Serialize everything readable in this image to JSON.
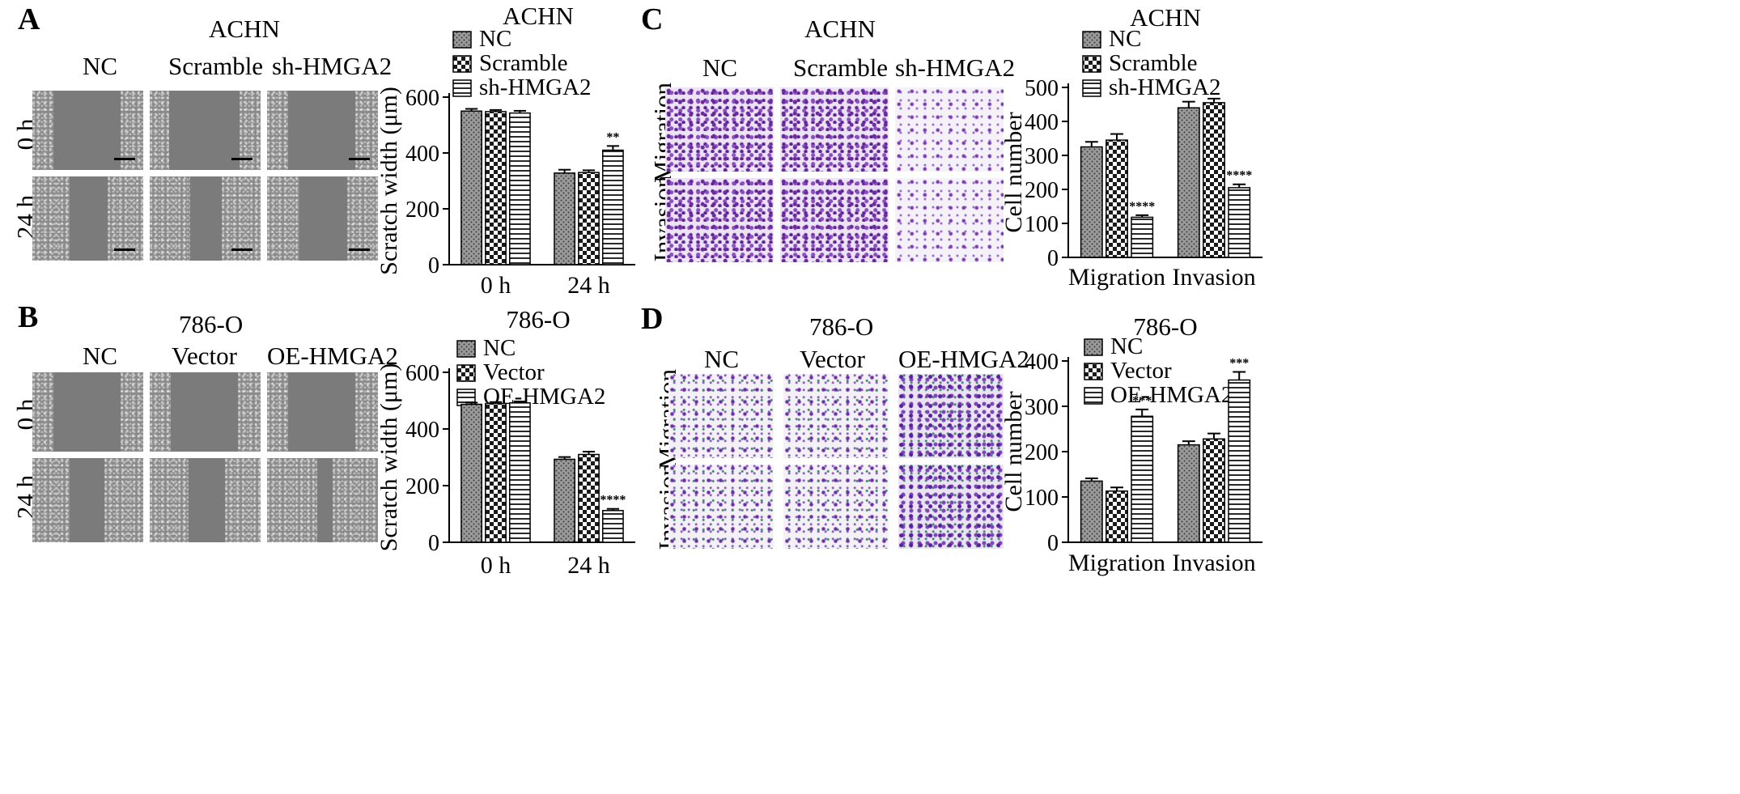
{
  "panels": {
    "A": {
      "letter": "A",
      "title": "ACHN",
      "columns": [
        "NC",
        "Scramble",
        "sh-HMGA2"
      ],
      "rows": [
        "0 h",
        "24 h"
      ]
    },
    "B": {
      "letter": "B",
      "title": "786-O",
      "columns": [
        "NC",
        "Vector",
        "OE-HMGA2"
      ],
      "rows": [
        "0 h",
        "24 h"
      ]
    },
    "C": {
      "letter": "C",
      "title": "ACHN",
      "columns": [
        "NC",
        "Scramble",
        "sh-HMGA2"
      ],
      "rows": [
        "Migration",
        "Invasion"
      ]
    },
    "D": {
      "letter": "D",
      "title": "786-O",
      "columns": [
        "NC",
        "Vector",
        "OE-HMGA2"
      ],
      "rows": [
        "Migration",
        "Invasion"
      ]
    }
  },
  "colors": {
    "bar_fill": "#bdbdbd",
    "ink": "#000000"
  },
  "chart_data": [
    {
      "id": "chart-a",
      "type": "bar",
      "title": "ACHN",
      "ylabel": "Scratch width (μm)",
      "categories": [
        "0 h",
        "24 h"
      ],
      "ylim": [
        0,
        600
      ],
      "yticks": [
        0,
        200,
        400,
        600
      ],
      "legend_position": "top",
      "series": [
        {
          "name": "NC",
          "pattern": "dots",
          "values": [
            550,
            328
          ],
          "errors": [
            8,
            12
          ]
        },
        {
          "name": "Scramble",
          "pattern": "check",
          "values": [
            548,
            330
          ],
          "errors": [
            6,
            8
          ]
        },
        {
          "name": "sh-HMGA2",
          "pattern": "hlines",
          "values": [
            543,
            410
          ],
          "errors": [
            8,
            15
          ]
        }
      ],
      "annotations": [
        {
          "category": 1,
          "series": 2,
          "text": "**"
        }
      ]
    },
    {
      "id": "chart-b",
      "type": "bar",
      "title": "786-O",
      "ylabel": "Scratch width (μm)",
      "categories": [
        "0 h",
        "24 h"
      ],
      "ylim": [
        0,
        600
      ],
      "yticks": [
        0,
        200,
        400,
        600
      ],
      "legend_position": "top",
      "series": [
        {
          "name": "NC",
          "pattern": "dots",
          "values": [
            487,
            293
          ],
          "errors": [
            6,
            8
          ]
        },
        {
          "name": "Vector",
          "pattern": "check",
          "values": [
            490,
            310
          ],
          "errors": [
            5,
            10
          ]
        },
        {
          "name": "OE-HMGA2",
          "pattern": "hlines",
          "values": [
            492,
            112
          ],
          "errors": [
            5,
            6
          ]
        }
      ],
      "annotations": [
        {
          "category": 1,
          "series": 2,
          "text": "****"
        }
      ]
    },
    {
      "id": "chart-c",
      "type": "bar",
      "title": "ACHN",
      "ylabel": "Cell number",
      "categories": [
        "Migration",
        "Invasion"
      ],
      "ylim": [
        0,
        500
      ],
      "yticks": [
        0,
        100,
        200,
        300,
        400,
        500
      ],
      "legend_position": "top",
      "series": [
        {
          "name": "NC",
          "pattern": "dots",
          "values": [
            325,
            440
          ],
          "errors": [
            15,
            18
          ]
        },
        {
          "name": "Scramble",
          "pattern": "check",
          "values": [
            345,
            455
          ],
          "errors": [
            18,
            12
          ]
        },
        {
          "name": "sh-HMGA2",
          "pattern": "hlines",
          "values": [
            118,
            205
          ],
          "errors": [
            6,
            10
          ]
        }
      ],
      "annotations": [
        {
          "category": 0,
          "series": 2,
          "text": "****"
        },
        {
          "category": 1,
          "series": 2,
          "text": "****"
        }
      ]
    },
    {
      "id": "chart-d",
      "type": "bar",
      "title": "786-O",
      "ylabel": "Cell number",
      "categories": [
        "Migration",
        "Invasion"
      ],
      "ylim": [
        0,
        400
      ],
      "yticks": [
        0,
        100,
        200,
        300,
        400
      ],
      "legend_position": "top",
      "series": [
        {
          "name": "NC",
          "pattern": "dots",
          "values": [
            135,
            215
          ],
          "errors": [
            6,
            8
          ]
        },
        {
          "name": "Vector",
          "pattern": "check",
          "values": [
            113,
            228
          ],
          "errors": [
            8,
            12
          ]
        },
        {
          "name": "OE-HMGA2",
          "pattern": "hlines",
          "values": [
            278,
            358
          ],
          "errors": [
            15,
            18
          ]
        }
      ],
      "annotations": [
        {
          "category": 0,
          "series": 2,
          "text": "***"
        },
        {
          "category": 1,
          "series": 2,
          "text": "***"
        }
      ]
    }
  ]
}
